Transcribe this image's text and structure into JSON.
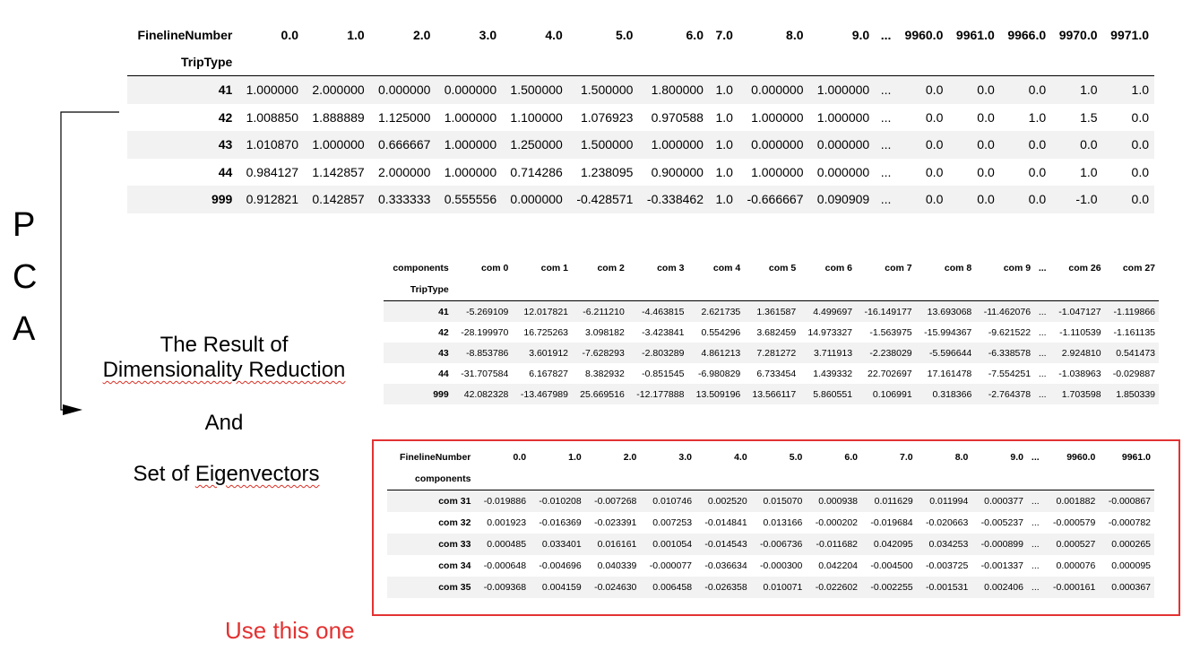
{
  "table1": {
    "col_index_name": "FinelineNumber",
    "row_index_name": "TripType",
    "columns": [
      "0.0",
      "1.0",
      "2.0",
      "3.0",
      "4.0",
      "5.0",
      "6.0",
      "7.0",
      "8.0",
      "9.0",
      "...",
      "9960.0",
      "9961.0",
      "9966.0",
      "9970.0",
      "9971.0"
    ],
    "rows": [
      {
        "index": "41",
        "values": [
          "1.000000",
          "2.000000",
          "0.000000",
          "0.000000",
          "1.500000",
          "1.500000",
          "1.800000",
          "1.0",
          "0.000000",
          "1.000000",
          "...",
          "0.0",
          "0.0",
          "0.0",
          "1.0",
          "1.0"
        ]
      },
      {
        "index": "42",
        "values": [
          "1.008850",
          "1.888889",
          "1.125000",
          "1.000000",
          "1.100000",
          "1.076923",
          "0.970588",
          "1.0",
          "1.000000",
          "1.000000",
          "...",
          "0.0",
          "0.0",
          "1.0",
          "1.5",
          "0.0"
        ]
      },
      {
        "index": "43",
        "values": [
          "1.010870",
          "1.000000",
          "0.666667",
          "1.000000",
          "1.250000",
          "1.500000",
          "1.000000",
          "1.0",
          "0.000000",
          "0.000000",
          "...",
          "0.0",
          "0.0",
          "0.0",
          "0.0",
          "0.0"
        ]
      },
      {
        "index": "44",
        "values": [
          "0.984127",
          "1.142857",
          "2.000000",
          "1.000000",
          "0.714286",
          "1.238095",
          "0.900000",
          "1.0",
          "1.000000",
          "0.000000",
          "...",
          "0.0",
          "0.0",
          "0.0",
          "1.0",
          "0.0"
        ]
      },
      {
        "index": "999",
        "values": [
          "0.912821",
          "0.142857",
          "0.333333",
          "0.555556",
          "0.000000",
          "-0.428571",
          "-0.338462",
          "1.0",
          "-0.666667",
          "0.090909",
          "...",
          "0.0",
          "0.0",
          "0.0",
          "-1.0",
          "0.0"
        ]
      }
    ]
  },
  "table2": {
    "col_index_name": "components",
    "row_index_name": "TripType",
    "columns": [
      "com 0",
      "com 1",
      "com 2",
      "com 3",
      "com 4",
      "com 5",
      "com 6",
      "com 7",
      "com 8",
      "com 9",
      "...",
      "com 26",
      "com 27"
    ],
    "rows": [
      {
        "index": "41",
        "values": [
          "-5.269109",
          "12.017821",
          "-6.211210",
          "-4.463815",
          "2.621735",
          "1.361587",
          "4.499697",
          "-16.149177",
          "13.693068",
          "-11.462076",
          "...",
          "-1.047127",
          "-1.119866"
        ]
      },
      {
        "index": "42",
        "values": [
          "-28.199970",
          "16.725263",
          "3.098182",
          "-3.423841",
          "0.554296",
          "3.682459",
          "14.973327",
          "-1.563975",
          "-15.994367",
          "-9.621522",
          "...",
          "-1.110539",
          "-1.161135"
        ]
      },
      {
        "index": "43",
        "values": [
          "-8.853786",
          "3.601912",
          "-7.628293",
          "-2.803289",
          "4.861213",
          "7.281272",
          "3.711913",
          "-2.238029",
          "-5.596644",
          "-6.338578",
          "...",
          "2.924810",
          "0.541473"
        ]
      },
      {
        "index": "44",
        "values": [
          "-31.707584",
          "6.167827",
          "8.382932",
          "-0.851545",
          "-6.980829",
          "6.733454",
          "1.439332",
          "22.702697",
          "17.161478",
          "-7.554251",
          "...",
          "-1.038963",
          "-0.029887"
        ]
      },
      {
        "index": "999",
        "values": [
          "42.082328",
          "-13.467989",
          "25.669516",
          "-12.177888",
          "13.509196",
          "13.566117",
          "5.860551",
          "0.106991",
          "0.318366",
          "-2.764378",
          "...",
          "1.703598",
          "1.850339"
        ]
      }
    ]
  },
  "table3": {
    "col_index_name": "FinelineNumber",
    "row_index_name": "components",
    "columns": [
      "0.0",
      "1.0",
      "2.0",
      "3.0",
      "4.0",
      "5.0",
      "6.0",
      "7.0",
      "8.0",
      "9.0",
      "...",
      "9960.0",
      "9961.0"
    ],
    "rows": [
      {
        "index": "com 31",
        "values": [
          "-0.019886",
          "-0.010208",
          "-0.007268",
          "0.010746",
          "0.002520",
          "0.015070",
          "0.000938",
          "0.011629",
          "0.011994",
          "0.000377",
          "...",
          "0.001882",
          "-0.000867"
        ]
      },
      {
        "index": "com 32",
        "values": [
          "0.001923",
          "-0.016369",
          "-0.023391",
          "0.007253",
          "-0.014841",
          "0.013166",
          "-0.000202",
          "-0.019684",
          "-0.020663",
          "-0.005237",
          "...",
          "-0.000579",
          "-0.000782"
        ]
      },
      {
        "index": "com 33",
        "values": [
          "0.000485",
          "0.033401",
          "0.016161",
          "0.001054",
          "-0.014543",
          "-0.006736",
          "-0.011682",
          "0.042095",
          "0.034253",
          "-0.000899",
          "...",
          "0.000527",
          "0.000265"
        ]
      },
      {
        "index": "com 34",
        "values": [
          "-0.000648",
          "-0.004696",
          "0.040339",
          "-0.000077",
          "-0.036634",
          "-0.000300",
          "0.042204",
          "-0.004500",
          "-0.003725",
          "-0.001337",
          "...",
          "0.000076",
          "0.000095"
        ]
      },
      {
        "index": "com 35",
        "values": [
          "-0.009368",
          "0.004159",
          "-0.024630",
          "0.006458",
          "-0.026358",
          "0.010071",
          "-0.022602",
          "-0.002255",
          "-0.001531",
          "0.002406",
          "...",
          "-0.000161",
          "0.000367"
        ]
      }
    ]
  },
  "annotations": {
    "pca_letters": [
      "P",
      "C",
      "A"
    ],
    "result_line1": "The Result of",
    "result_line2": "Dimensionality Reduction",
    "and": "And",
    "set_prefix": "Set of ",
    "set_word": "Eigenvectors",
    "use_note": "Use this one",
    "highlight_color": "#e33232",
    "arrow_icon": "arrow-right-icon"
  }
}
